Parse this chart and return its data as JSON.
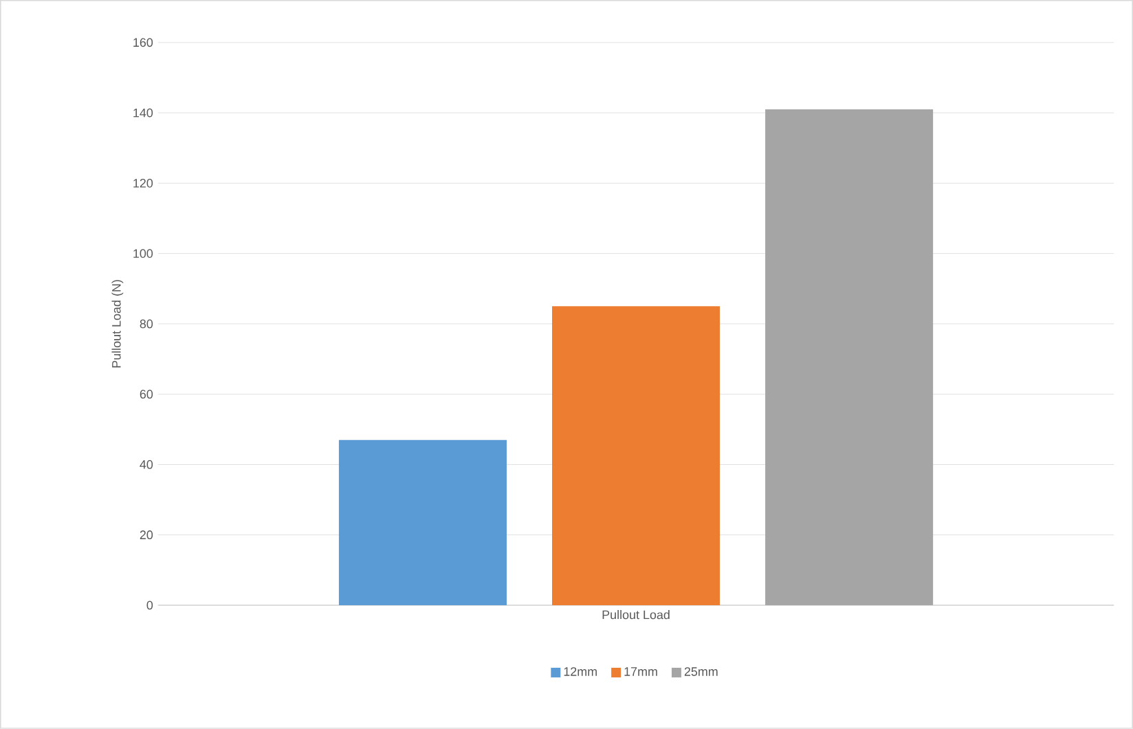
{
  "chart_data": {
    "type": "bar",
    "ylabel": "Pullout Load (N)",
    "categories": [
      "Pullout Load"
    ],
    "series": [
      {
        "name": "12mm",
        "color": "#5b9bd5",
        "values": [
          47
        ]
      },
      {
        "name": "17mm",
        "color": "#ed7d31",
        "values": [
          85
        ]
      },
      {
        "name": "25mm",
        "color": "#a5a5a5",
        "values": [
          141
        ]
      }
    ],
    "ylim": [
      0,
      160
    ],
    "yticks": [
      0,
      20,
      40,
      60,
      80,
      100,
      120,
      140,
      160
    ],
    "grid": "y",
    "legend": "bottom"
  }
}
